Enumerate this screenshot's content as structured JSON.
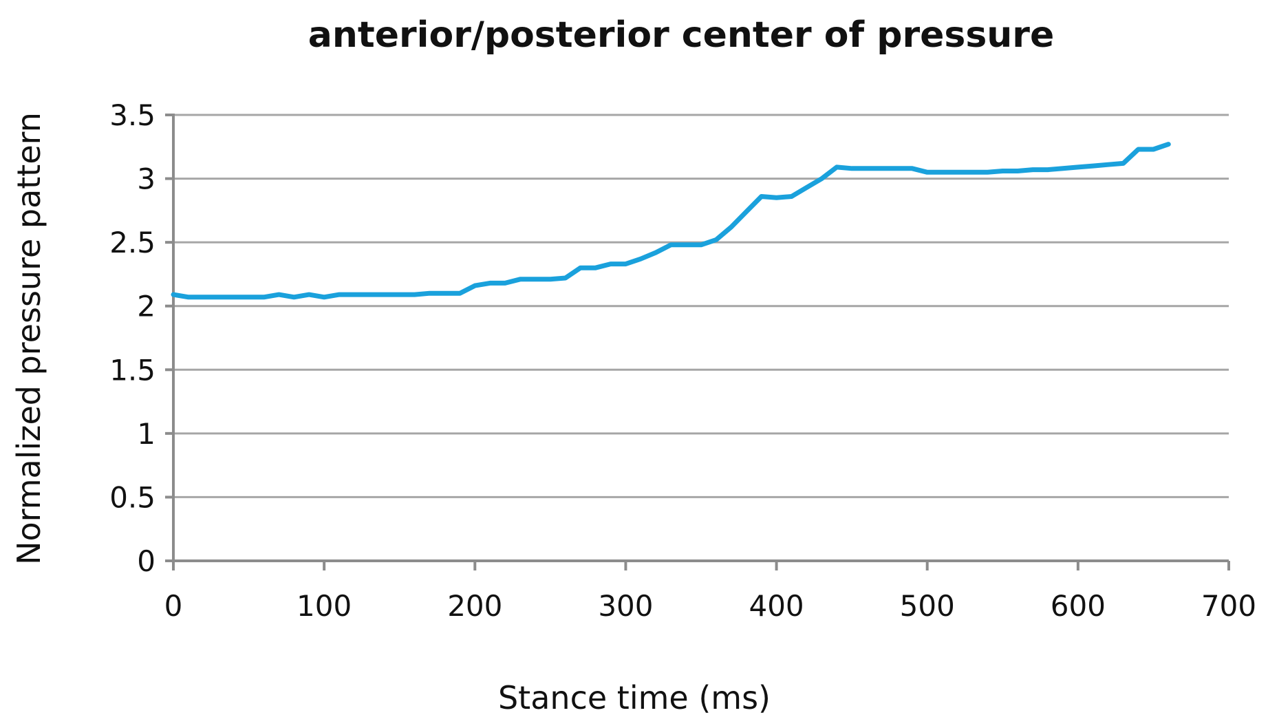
{
  "chart_data": {
    "type": "line",
    "title": "anterior/posterior center of pressure",
    "xlabel": "Stance time (ms)",
    "ylabel": "Normalized pressure pattern",
    "xlim": [
      0,
      700
    ],
    "ylim": [
      0,
      3.5
    ],
    "x_ticks": [
      "0",
      "100",
      "200",
      "300",
      "400",
      "500",
      "600",
      "700"
    ],
    "y_ticks": [
      "0",
      "0.5",
      "1",
      "1.5",
      "2",
      "2.5",
      "3",
      "3.5"
    ],
    "grid": true,
    "legend": "none",
    "colors": {
      "series": "#1aa1dc",
      "grid": "#a6a6a6",
      "axis": "#8c8c8c",
      "text": "#111111"
    },
    "series": [
      {
        "x": [
          0,
          10,
          20,
          30,
          40,
          50,
          60,
          70,
          80,
          90,
          100,
          110,
          120,
          130,
          140,
          150,
          160,
          170,
          180,
          190,
          200,
          210,
          220,
          230,
          240,
          250,
          260,
          270,
          280,
          290,
          300,
          310,
          320,
          330,
          340,
          350,
          360,
          370,
          380,
          390,
          400,
          410,
          420,
          430,
          440,
          450,
          460,
          470,
          480,
          490,
          500,
          510,
          520,
          530,
          540,
          550,
          560,
          570,
          580,
          590,
          600,
          610,
          620,
          630,
          640,
          650,
          660
        ],
        "y": [
          2.09,
          2.07,
          2.07,
          2.07,
          2.07,
          2.07,
          2.07,
          2.09,
          2.07,
          2.09,
          2.07,
          2.09,
          2.09,
          2.09,
          2.09,
          2.09,
          2.09,
          2.1,
          2.1,
          2.1,
          2.16,
          2.18,
          2.18,
          2.21,
          2.21,
          2.21,
          2.22,
          2.3,
          2.3,
          2.33,
          2.33,
          2.37,
          2.42,
          2.48,
          2.48,
          2.48,
          2.52,
          2.62,
          2.74,
          2.86,
          2.85,
          2.86,
          2.93,
          3.0,
          3.09,
          3.08,
          3.08,
          3.08,
          3.08,
          3.08,
          3.05,
          3.05,
          3.05,
          3.05,
          3.05,
          3.06,
          3.06,
          3.07,
          3.07,
          3.08,
          3.09,
          3.1,
          3.11,
          3.12,
          3.23,
          3.23,
          3.27
        ]
      }
    ]
  }
}
